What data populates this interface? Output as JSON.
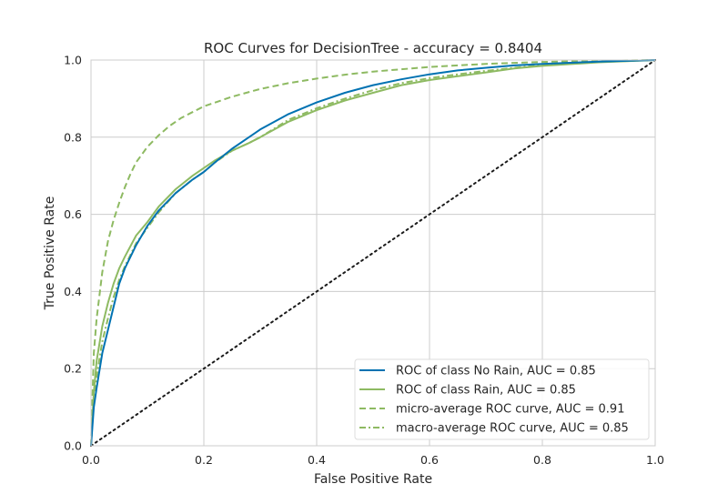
{
  "chart_data": {
    "type": "line",
    "title": "ROC Curves for DecisionTree - accuracy = 0.8404",
    "xlabel": "False Positive Rate",
    "ylabel": "True Positive Rate",
    "xlim": [
      0.0,
      1.0
    ],
    "ylim": [
      0.0,
      1.0
    ],
    "xticks": [
      "0.0",
      "0.2",
      "0.4",
      "0.6",
      "0.8",
      "1.0"
    ],
    "yticks": [
      "0.0",
      "0.2",
      "0.4",
      "0.6",
      "0.8",
      "1.0"
    ],
    "grid": true,
    "legend_position": "lower-right",
    "series": [
      {
        "name": "ROC of class No Rain, AUC = 0.85",
        "color": "#0072B2",
        "dash": "solid",
        "x": [
          0.0,
          0.005,
          0.01,
          0.02,
          0.03,
          0.04,
          0.05,
          0.06,
          0.08,
          0.1,
          0.12,
          0.15,
          0.18,
          0.2,
          0.22,
          0.25,
          0.28,
          0.3,
          0.35,
          0.4,
          0.45,
          0.5,
          0.55,
          0.6,
          0.65,
          0.7,
          0.75,
          0.8,
          0.9,
          1.0
        ],
        "y": [
          0.0,
          0.1,
          0.15,
          0.24,
          0.3,
          0.36,
          0.42,
          0.46,
          0.52,
          0.57,
          0.61,
          0.655,
          0.69,
          0.71,
          0.735,
          0.77,
          0.8,
          0.82,
          0.86,
          0.89,
          0.915,
          0.935,
          0.95,
          0.963,
          0.973,
          0.98,
          0.986,
          0.99,
          0.996,
          1.0
        ]
      },
      {
        "name": "ROC of class Rain, AUC = 0.85",
        "color": "#8EBA62",
        "dash": "solid",
        "x": [
          0.0,
          0.005,
          0.01,
          0.02,
          0.03,
          0.04,
          0.05,
          0.06,
          0.08,
          0.1,
          0.12,
          0.15,
          0.18,
          0.2,
          0.22,
          0.25,
          0.28,
          0.3,
          0.35,
          0.4,
          0.45,
          0.5,
          0.55,
          0.6,
          0.65,
          0.7,
          0.75,
          0.8,
          0.9,
          1.0
        ],
        "y": [
          0.0,
          0.14,
          0.22,
          0.31,
          0.37,
          0.42,
          0.46,
          0.49,
          0.545,
          0.58,
          0.62,
          0.665,
          0.7,
          0.72,
          0.74,
          0.765,
          0.785,
          0.8,
          0.84,
          0.87,
          0.895,
          0.915,
          0.935,
          0.948,
          0.958,
          0.968,
          0.978,
          0.985,
          0.994,
          1.0
        ]
      },
      {
        "name": "micro-average ROC curve, AUC = 0.91",
        "color": "#8EBA62",
        "dash": "dashed",
        "x": [
          0.0,
          0.005,
          0.01,
          0.02,
          0.03,
          0.04,
          0.05,
          0.06,
          0.07,
          0.08,
          0.1,
          0.12,
          0.14,
          0.16,
          0.18,
          0.2,
          0.25,
          0.3,
          0.35,
          0.4,
          0.45,
          0.5,
          0.6,
          0.7,
          0.8,
          0.9,
          1.0
        ],
        "y": [
          0.0,
          0.24,
          0.33,
          0.45,
          0.53,
          0.585,
          0.63,
          0.67,
          0.705,
          0.735,
          0.775,
          0.805,
          0.83,
          0.85,
          0.865,
          0.88,
          0.905,
          0.925,
          0.94,
          0.952,
          0.962,
          0.97,
          0.982,
          0.99,
          0.995,
          0.998,
          1.0
        ]
      },
      {
        "name": "macro-average ROC curve, AUC = 0.85",
        "color": "#8EBA62",
        "dash": "dashdot",
        "x": [
          0.0,
          0.005,
          0.01,
          0.02,
          0.03,
          0.04,
          0.05,
          0.06,
          0.08,
          0.1,
          0.12,
          0.15,
          0.18,
          0.2,
          0.22,
          0.25,
          0.28,
          0.3,
          0.35,
          0.4,
          0.45,
          0.5,
          0.55,
          0.6,
          0.65,
          0.7,
          0.75,
          0.8,
          0.9,
          1.0
        ],
        "y": [
          0.0,
          0.12,
          0.18,
          0.27,
          0.33,
          0.385,
          0.43,
          0.465,
          0.525,
          0.565,
          0.605,
          0.655,
          0.69,
          0.71,
          0.735,
          0.765,
          0.785,
          0.8,
          0.845,
          0.875,
          0.9,
          0.922,
          0.94,
          0.953,
          0.963,
          0.972,
          0.98,
          0.987,
          0.995,
          1.0
        ]
      }
    ],
    "reference_line": {
      "x": [
        0.0,
        1.0
      ],
      "y": [
        0.0,
        1.0
      ],
      "color": "#1a1a1a",
      "dash": "dotted"
    }
  }
}
